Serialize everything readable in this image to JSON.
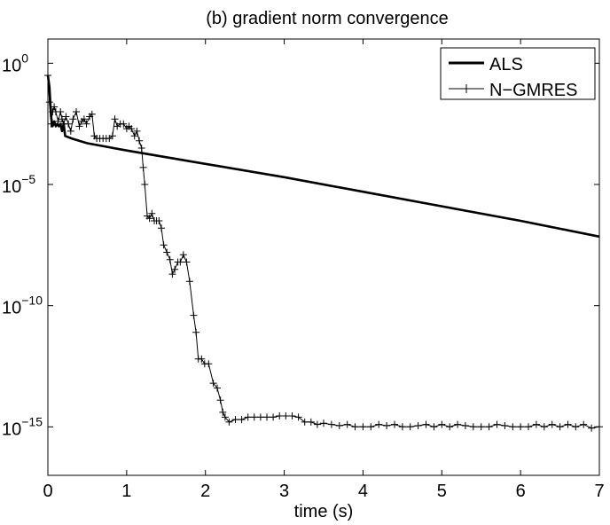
{
  "chart_data": {
    "type": "line",
    "title": "(b) gradient norm convergence",
    "xlabel": "time (s)",
    "ylabel": "",
    "xlim": [
      0,
      7
    ],
    "ylim_exp": [
      -17,
      1
    ],
    "y_scale": "log",
    "x_ticks": [
      "0",
      "1",
      "2",
      "3",
      "4",
      "5",
      "6",
      "7"
    ],
    "y_ticks": [
      {
        "base": "10",
        "exp": "0",
        "value_exp": 0
      },
      {
        "base": "10",
        "exp": "−5",
        "value_exp": -5
      },
      {
        "base": "10",
        "exp": "−10",
        "value_exp": -10
      },
      {
        "base": "10",
        "exp": "−15",
        "value_exp": -15
      }
    ],
    "grid": false,
    "legend_position": "top-right",
    "series": [
      {
        "name": "ALS",
        "style": "thick-line",
        "color": "#000000",
        "log10_y": [
          [
            0.0,
            -0.5
          ],
          [
            0.02,
            -1.0
          ],
          [
            0.04,
            -2.2
          ],
          [
            0.06,
            -2.6
          ],
          [
            0.08,
            -2.4
          ],
          [
            0.1,
            -2.6
          ],
          [
            0.12,
            -2.5
          ],
          [
            0.14,
            -2.6
          ],
          [
            0.16,
            -2.5
          ],
          [
            0.18,
            -2.8
          ],
          [
            0.2,
            -2.5
          ],
          [
            0.22,
            -3.0
          ],
          [
            0.3,
            -3.1
          ],
          [
            0.5,
            -3.3
          ],
          [
            1.0,
            -3.6
          ],
          [
            2.0,
            -4.15
          ],
          [
            3.0,
            -4.7
          ],
          [
            4.0,
            -5.3
          ],
          [
            5.0,
            -5.9
          ],
          [
            6.0,
            -6.5
          ],
          [
            7.0,
            -7.15
          ]
        ]
      },
      {
        "name": "N−GMRES",
        "style": "thin-line-plus-markers",
        "color": "#000000",
        "log10_y": [
          [
            0.0,
            -0.5
          ],
          [
            0.02,
            -1.6
          ],
          [
            0.04,
            -2.5
          ],
          [
            0.06,
            -2.0
          ],
          [
            0.08,
            -1.8
          ],
          [
            0.1,
            -2.0
          ],
          [
            0.13,
            -2.4
          ],
          [
            0.16,
            -2.0
          ],
          [
            0.18,
            -2.3
          ],
          [
            0.2,
            -2.5
          ],
          [
            0.23,
            -2.2
          ],
          [
            0.26,
            -2.5
          ],
          [
            0.29,
            -2.8
          ],
          [
            0.32,
            -2.3
          ],
          [
            0.36,
            -2.0
          ],
          [
            0.4,
            -2.6
          ],
          [
            0.43,
            -2.4
          ],
          [
            0.46,
            -2.3
          ],
          [
            0.49,
            -2.5
          ],
          [
            0.53,
            -2.2
          ],
          [
            0.56,
            -2.1
          ],
          [
            0.59,
            -3.0
          ],
          [
            0.62,
            -3.1
          ],
          [
            0.66,
            -3.1
          ],
          [
            0.7,
            -3.1
          ],
          [
            0.74,
            -3.1
          ],
          [
            0.78,
            -3.1
          ],
          [
            0.82,
            -3.0
          ],
          [
            0.85,
            -2.3
          ],
          [
            0.88,
            -2.6
          ],
          [
            0.92,
            -2.5
          ],
          [
            0.96,
            -2.5
          ],
          [
            1.0,
            -2.7
          ],
          [
            1.03,
            -2.6
          ],
          [
            1.06,
            -2.7
          ],
          [
            1.1,
            -3.0
          ],
          [
            1.13,
            -2.8
          ],
          [
            1.16,
            -3.2
          ],
          [
            1.19,
            -3.5
          ],
          [
            1.21,
            -4.3
          ],
          [
            1.23,
            -5.0
          ],
          [
            1.26,
            -6.3
          ],
          [
            1.29,
            -6.4
          ],
          [
            1.32,
            -6.2
          ],
          [
            1.35,
            -6.5
          ],
          [
            1.38,
            -6.5
          ],
          [
            1.41,
            -6.5
          ],
          [
            1.44,
            -6.8
          ],
          [
            1.47,
            -7.5
          ],
          [
            1.51,
            -7.8
          ],
          [
            1.55,
            -8.1
          ],
          [
            1.58,
            -8.7
          ],
          [
            1.61,
            -8.5
          ],
          [
            1.65,
            -8.2
          ],
          [
            1.68,
            -8.2
          ],
          [
            1.72,
            -7.9
          ],
          [
            1.76,
            -8.2
          ],
          [
            1.8,
            -9.0
          ],
          [
            1.85,
            -10.4
          ],
          [
            1.88,
            -11.1
          ],
          [
            1.91,
            -12.2
          ],
          [
            1.95,
            -12.2
          ],
          [
            1.99,
            -12.4
          ],
          [
            2.04,
            -12.4
          ],
          [
            2.1,
            -13.2
          ],
          [
            2.15,
            -13.4
          ],
          [
            2.19,
            -13.9
          ],
          [
            2.22,
            -14.4
          ],
          [
            2.25,
            -14.6
          ],
          [
            2.3,
            -14.8
          ],
          [
            2.38,
            -14.7
          ],
          [
            2.46,
            -14.7
          ],
          [
            2.54,
            -14.6
          ],
          [
            2.62,
            -14.6
          ],
          [
            2.7,
            -14.6
          ],
          [
            2.78,
            -14.6
          ],
          [
            2.86,
            -14.6
          ],
          [
            2.94,
            -14.55
          ],
          [
            3.02,
            -14.55
          ],
          [
            3.1,
            -14.55
          ],
          [
            3.18,
            -14.6
          ],
          [
            3.26,
            -14.8
          ],
          [
            3.34,
            -14.8
          ],
          [
            3.42,
            -14.9
          ],
          [
            3.5,
            -14.85
          ],
          [
            3.6,
            -14.9
          ],
          [
            3.7,
            -14.95
          ],
          [
            3.8,
            -14.9
          ],
          [
            3.9,
            -15.0
          ],
          [
            4.0,
            -15.0
          ],
          [
            4.1,
            -15.0
          ],
          [
            4.2,
            -14.9
          ],
          [
            4.3,
            -14.95
          ],
          [
            4.4,
            -14.9
          ],
          [
            4.5,
            -15.0
          ],
          [
            4.6,
            -15.0
          ],
          [
            4.7,
            -14.95
          ],
          [
            4.8,
            -14.9
          ],
          [
            4.9,
            -15.0
          ],
          [
            5.0,
            -14.9
          ],
          [
            5.1,
            -15.0
          ],
          [
            5.2,
            -14.9
          ],
          [
            5.3,
            -14.95
          ],
          [
            5.4,
            -15.0
          ],
          [
            5.5,
            -15.0
          ],
          [
            5.6,
            -15.0
          ],
          [
            5.7,
            -14.9
          ],
          [
            5.8,
            -14.95
          ],
          [
            5.9,
            -15.0
          ],
          [
            6.0,
            -15.0
          ],
          [
            6.1,
            -15.0
          ],
          [
            6.2,
            -14.9
          ],
          [
            6.3,
            -15.0
          ],
          [
            6.4,
            -14.9
          ],
          [
            6.5,
            -15.0
          ],
          [
            6.6,
            -14.9
          ],
          [
            6.7,
            -15.0
          ],
          [
            6.8,
            -14.9
          ],
          [
            6.9,
            -15.05
          ],
          [
            7.0,
            -15.0
          ]
        ]
      }
    ]
  }
}
